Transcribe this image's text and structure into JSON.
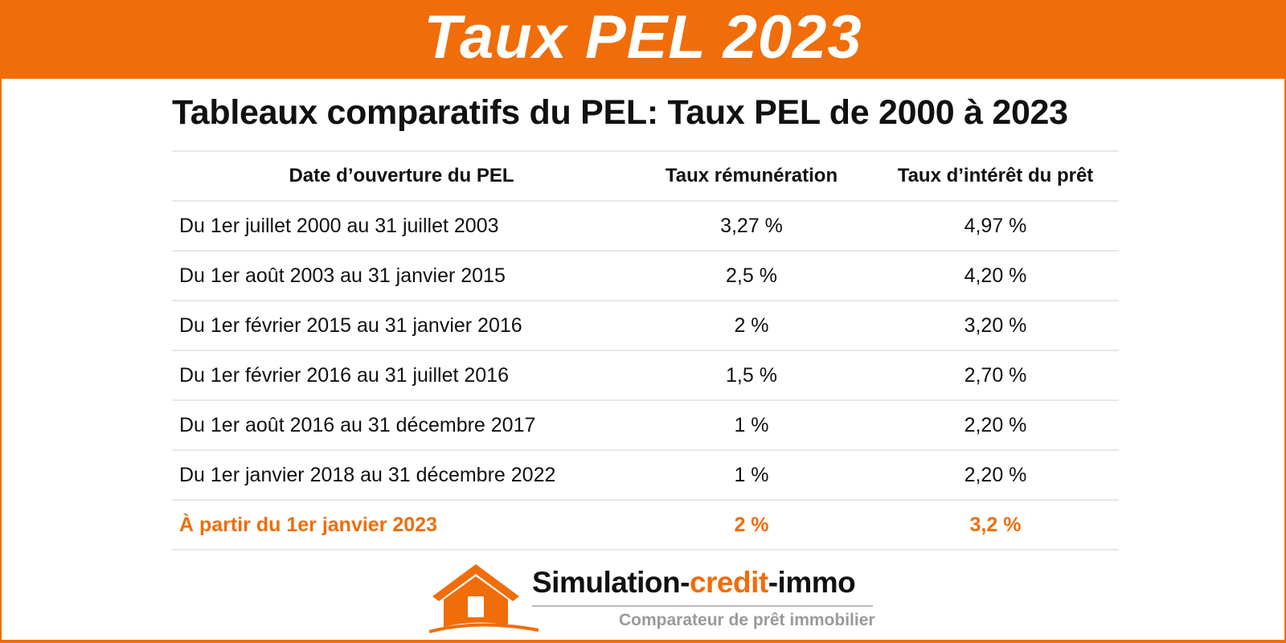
{
  "banner": {
    "title": "Taux PEL 2023"
  },
  "heading": "Tableaux comparatifs du PEL: Taux PEL de 2000 à 2023",
  "table": {
    "headers": [
      "Date d’ouverture du PEL",
      "Taux rémunération",
      "Taux d’intérêt du prêt"
    ],
    "rows": [
      [
        "Du 1er juillet 2000 au 31 juillet 2003",
        "3,27 %",
        "4,97 %"
      ],
      [
        "Du 1er août 2003 au 31 janvier 2015",
        "2,5 %",
        "4,20 %"
      ],
      [
        "Du 1er février 2015 au 31 janvier 2016",
        "2 %",
        "3,20 %"
      ],
      [
        "Du 1er février 2016 au 31 juillet 2016",
        "1,5 %",
        "2,70 %"
      ],
      [
        "Du 1er août 2016 au 31 décembre 2017",
        "1 %",
        "2,20 %"
      ],
      [
        "Du 1er janvier 2018 au 31 décembre 2022",
        "1 %",
        "2,20 %"
      ],
      [
        "À partir du 1er janvier 2023",
        "2 %",
        "3,2 %"
      ]
    ]
  },
  "logo": {
    "brand_part1": "Simulation-",
    "brand_part2": "credit",
    "brand_part3": "-immo",
    "tagline": "Comparateur de prêt immobilier",
    "icon": "house-icon"
  },
  "colors": {
    "accent": "#f06d0a",
    "text": "#111111",
    "muted": "#9a9a9a",
    "rule": "#e8e8e8"
  }
}
